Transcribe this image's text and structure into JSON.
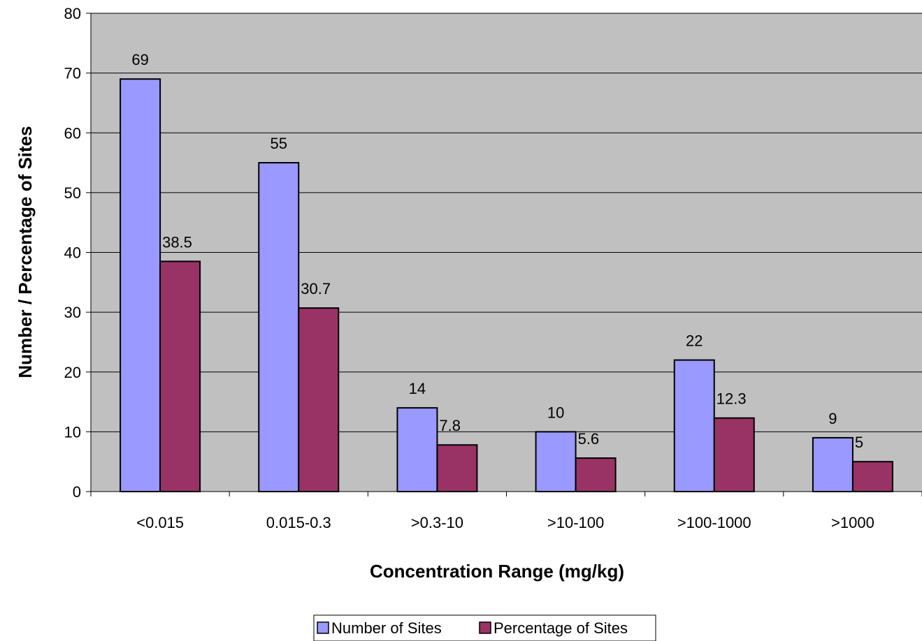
{
  "chart_data": {
    "type": "bar",
    "title": "",
    "xlabel": "Concentration Range (mg/kg)",
    "ylabel": "Number / Percentage of Sites",
    "categories": [
      "<0.015",
      "0.015-0.3",
      ">0.3-10",
      ">10-100",
      ">100-1000",
      ">1000"
    ],
    "series": [
      {
        "name": "Number of Sites",
        "values": [
          69,
          55,
          14,
          10,
          22,
          9
        ],
        "color": "#9999ff"
      },
      {
        "name": "Percentage of Sites",
        "values": [
          38.5,
          30.7,
          7.8,
          5.6,
          12.3,
          5
        ],
        "color": "#993366"
      }
    ],
    "ylim": [
      0,
      80
    ],
    "yticks": [
      0,
      10,
      20,
      30,
      40,
      50,
      60,
      70,
      80
    ],
    "grid": true,
    "plot_background": "#c0c0c0",
    "legend_position": "bottom-center"
  }
}
